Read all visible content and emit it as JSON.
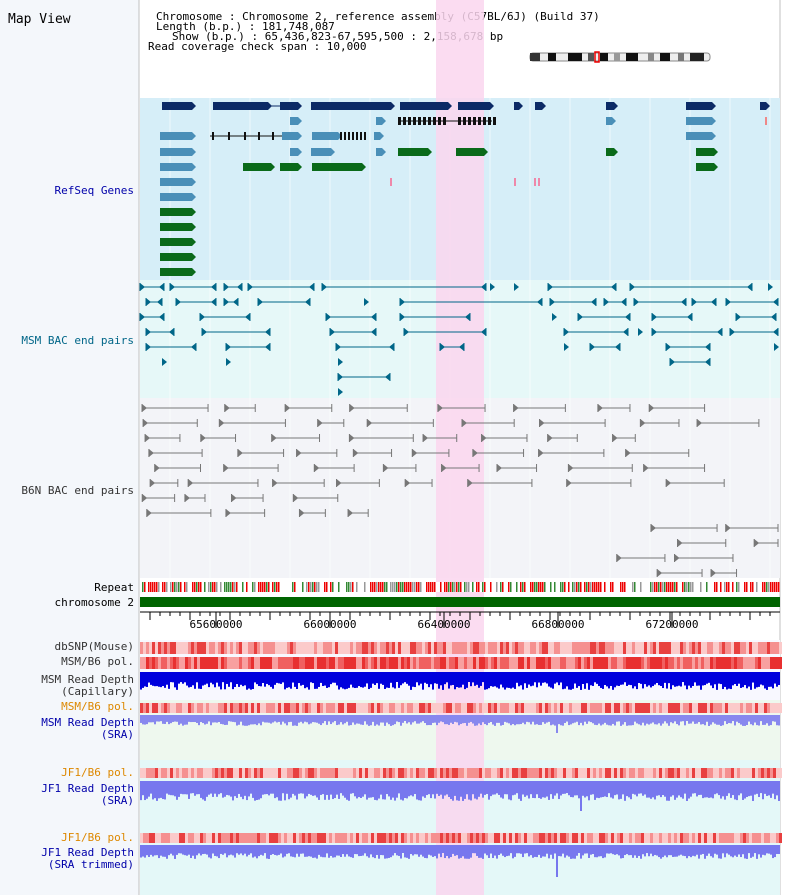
{
  "view": {
    "title": "Map View"
  },
  "info": {
    "lines": [
      "Chromosome     : Chromosome 2, reference assembly (C57BL/6J) (Build 37)",
      "Length (b.p.) : 181,748,087",
      "Show (b.p.) : 65,436,823-67,595,500 : 2,158,678 bp",
      "Read coverage check span : 10,000"
    ]
  },
  "tracks": {
    "refseq": {
      "label": "RefSeq Genes",
      "color": "#0a2a6a"
    },
    "msm_bac": {
      "label": "MSM BAC end pairs",
      "color": "#1a6a8a"
    },
    "b6n_bac": {
      "label": "B6N BAC end pairs",
      "color": "#666666"
    },
    "repeat": {
      "label": "Repeat"
    },
    "chromosome": {
      "label": "chromosome 2"
    },
    "dbsnp": {
      "label": "dbSNP(Mouse)"
    },
    "msm_b6_pol": {
      "label": "MSM/B6 pol."
    },
    "msm_depth_cap": {
      "label1": "MSM Read Depth",
      "label2": "(Capillary)"
    },
    "msm_b6_pol2": {
      "label": "MSM/B6 pol."
    },
    "msm_depth_sra": {
      "label1": "MSM Read Depth",
      "label2": "(SRA)"
    },
    "jf1_b6_pol": {
      "label": "JF1/B6 pol."
    },
    "jf1_depth_sra": {
      "label1": "JF1 Read Depth",
      "label2": "(SRA)"
    },
    "jf1_b6_pol2": {
      "label": "JF1/B6 pol."
    },
    "jf1_depth_trim": {
      "label1": "JF1 Read Depth",
      "label2": "(SRA trimmed)"
    }
  },
  "axis": {
    "ticks": [
      "65600000",
      "66000000",
      "66400000",
      "66800000",
      "67200000"
    ]
  },
  "colors": {
    "refseq_bg": "#d6eef8",
    "bac_bg": "#e6f8f8",
    "b6n_bg": "#f3f4f8",
    "highlight": "#fad6ee",
    "gene_dark": "#0c2a66",
    "gene_light": "#4a8fb8",
    "gene_green": "#0a6a1a",
    "chrom_green": "#006400",
    "depth_blue": "#0000dd",
    "depth_light": "#7777ee",
    "label_blue": "#0000aa",
    "label_teal": "#006688",
    "label_orange": "#dd8800"
  }
}
